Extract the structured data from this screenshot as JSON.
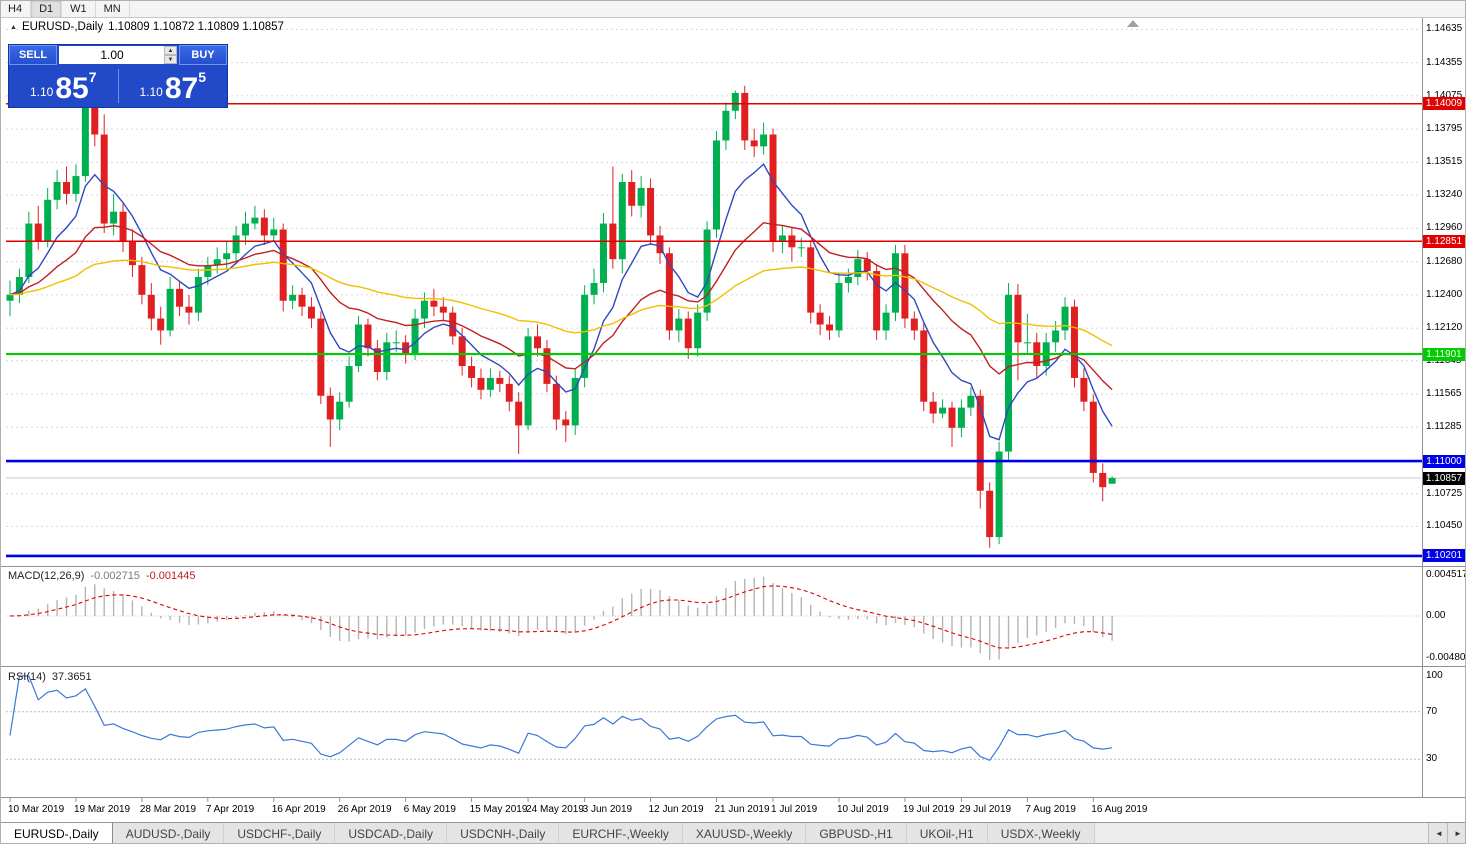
{
  "toolbar": {
    "timeframes": [
      "H4",
      "D1",
      "W1",
      "MN"
    ],
    "active": "D1"
  },
  "chart_header": {
    "title": "EURUSD-,Daily",
    "quote": "1.10809 1.10872 1.10809 1.10857"
  },
  "trade_panel": {
    "sell_label": "SELL",
    "buy_label": "BUY",
    "volume": "1.00",
    "sell_price_prefix": "1.10",
    "sell_price_main": "85",
    "sell_price_pip": "7",
    "buy_price_prefix": "1.10",
    "buy_price_main": "87",
    "buy_price_pip": "5"
  },
  "icons": {
    "chart_marker": "▲",
    "spinner_up": "▲",
    "spinner_down": "▼",
    "tab_scroll_left": "◄",
    "tab_scroll_right": "►"
  },
  "indicators": {
    "macd": {
      "label": "MACD(12,26,9)",
      "value_main": "-0.002715",
      "value_signal": "-0.001445",
      "axis_labels": [
        "0.004517",
        "0.00",
        "-0.004806"
      ]
    },
    "rsi": {
      "label": "RSI(14)",
      "value": "37.3651",
      "axis_labels": [
        "100",
        "70",
        "30"
      ],
      "levels": [
        100,
        70,
        30
      ]
    }
  },
  "price_axis": {
    "ticks": [
      1.14635,
      1.14355,
      1.14075,
      1.13795,
      1.13515,
      1.1324,
      1.1296,
      1.1268,
      1.124,
      1.1212,
      1.11845,
      1.11565,
      1.11285,
      1.10725,
      1.1045
    ],
    "levels": [
      {
        "price": 1.14009,
        "label": "1.14009",
        "type": "resistance",
        "color": "#e00000"
      },
      {
        "price": 1.12851,
        "label": "1.12851",
        "type": "resistance",
        "color": "#e00000"
      },
      {
        "price": 1.11901,
        "label": "1.11901",
        "type": "support",
        "color": "#00cc00"
      },
      {
        "price": 1.11,
        "label": "1.11000",
        "type": "support",
        "color": "#0000e8"
      },
      {
        "price": 1.10201,
        "label": "1.10201",
        "type": "support",
        "color": "#0000e8"
      }
    ],
    "current_price": {
      "value": 1.10857,
      "label": "1.10857"
    }
  },
  "time_axis": {
    "labels": [
      "10 Mar 2019",
      "19 Mar 2019",
      "28 Mar 2019",
      "7 Apr 2019",
      "16 Apr 2019",
      "26 Apr 2019",
      "6 May 2019",
      "15 May 2019",
      "24 May 2019",
      "3 Jun 2019",
      "12 Jun 2019",
      "21 Jun 2019",
      "1 Jul 2019",
      "10 Jul 2019",
      "19 Jul 2019",
      "29 Jul 2019",
      "7 Aug 2019",
      "16 Aug 2019"
    ],
    "candle_index": [
      0,
      7,
      14,
      21,
      28,
      35,
      42,
      49,
      55,
      61,
      68,
      75,
      81,
      88,
      95,
      101,
      108,
      115
    ]
  },
  "tabs": {
    "items": [
      "EURUSD-,Daily",
      "AUDUSD-,Daily",
      "USDCHF-,Daily",
      "USDCAD-,Daily",
      "USDCNH-,Daily",
      "EURCHF-,Weekly",
      "XAUUSD-,Weekly",
      "GBPUSD-,H1",
      "UKOil-,H1",
      "USDX-,Weekly"
    ],
    "active_index": 0
  },
  "colors": {
    "bull": "#00b050",
    "bear": "#e02020",
    "ma_fast": "#2f49c0",
    "ma_mid": "#c02020",
    "ma_slow": "#f0c000",
    "macd_hist": "#b4b4b4",
    "macd_signal": "#e00000",
    "rsi_line": "#3c78d8",
    "grid": "#d6d6d6",
    "separator": "#909090",
    "current_line": "#c8c8c8",
    "current_tag": "#000000"
  },
  "chart_data": {
    "type": "candlestick",
    "symbol": "EURUSD-",
    "timeframe": "Daily",
    "ohlc_current": {
      "open": 1.10809,
      "high": 1.10872,
      "low": 1.10809,
      "close": 1.10857
    },
    "price_range": {
      "min": 1.1015,
      "max": 1.1463
    },
    "moving_averages": [
      {
        "period": 8,
        "color_key": "ma_fast"
      },
      {
        "period": 21,
        "color_key": "ma_mid"
      },
      {
        "period": 55,
        "color_key": "ma_slow"
      }
    ],
    "macd_params": {
      "fast": 12,
      "slow": 26,
      "signal": 9
    },
    "rsi_params": {
      "period": 14
    },
    "candles": [
      [
        1.1235,
        1.1252,
        1.1222,
        1.124
      ],
      [
        1.124,
        1.1262,
        1.1233,
        1.1255
      ],
      [
        1.1255,
        1.131,
        1.125,
        1.13
      ],
      [
        1.13,
        1.1315,
        1.1278,
        1.1285
      ],
      [
        1.1285,
        1.133,
        1.128,
        1.132
      ],
      [
        1.132,
        1.1345,
        1.1312,
        1.1335
      ],
      [
        1.1335,
        1.1348,
        1.1316,
        1.1325
      ],
      [
        1.1325,
        1.135,
        1.1318,
        1.134
      ],
      [
        1.134,
        1.1448,
        1.1335,
        1.142
      ],
      [
        1.142,
        1.1437,
        1.1365,
        1.1375
      ],
      [
        1.1375,
        1.1392,
        1.1292,
        1.13
      ],
      [
        1.13,
        1.1325,
        1.129,
        1.131
      ],
      [
        1.131,
        1.1318,
        1.1276,
        1.1285
      ],
      [
        1.1285,
        1.1295,
        1.1255,
        1.1265
      ],
      [
        1.1265,
        1.1272,
        1.1232,
        1.124
      ],
      [
        1.124,
        1.125,
        1.121,
        1.122
      ],
      [
        1.122,
        1.123,
        1.1198,
        1.121
      ],
      [
        1.121,
        1.1255,
        1.1205,
        1.1245
      ],
      [
        1.1245,
        1.1252,
        1.1222,
        1.123
      ],
      [
        1.123,
        1.124,
        1.1215,
        1.1225
      ],
      [
        1.1225,
        1.1262,
        1.1218,
        1.1255
      ],
      [
        1.1255,
        1.1272,
        1.1248,
        1.1265
      ],
      [
        1.1265,
        1.128,
        1.1258,
        1.127
      ],
      [
        1.127,
        1.1285,
        1.1262,
        1.1275
      ],
      [
        1.1275,
        1.1298,
        1.1268,
        1.129
      ],
      [
        1.129,
        1.131,
        1.1282,
        1.13
      ],
      [
        1.13,
        1.1315,
        1.1295,
        1.1305
      ],
      [
        1.1305,
        1.1312,
        1.1282,
        1.129
      ],
      [
        1.129,
        1.1305,
        1.1285,
        1.1295
      ],
      [
        1.1295,
        1.13,
        1.1226,
        1.1235
      ],
      [
        1.1235,
        1.1248,
        1.1228,
        1.124
      ],
      [
        1.124,
        1.1246,
        1.1222,
        1.123
      ],
      [
        1.123,
        1.1238,
        1.1212,
        1.122
      ],
      [
        1.122,
        1.1226,
        1.1148,
        1.1155
      ],
      [
        1.1155,
        1.1162,
        1.1112,
        1.1135
      ],
      [
        1.1135,
        1.1158,
        1.1126,
        1.115
      ],
      [
        1.115,
        1.1188,
        1.1145,
        1.118
      ],
      [
        1.118,
        1.1222,
        1.1175,
        1.1215
      ],
      [
        1.1215,
        1.122,
        1.1188,
        1.1195
      ],
      [
        1.1195,
        1.1202,
        1.1168,
        1.1175
      ],
      [
        1.1175,
        1.1208,
        1.1168,
        1.12
      ],
      [
        1.12,
        1.121,
        1.1192,
        1.12
      ],
      [
        1.12,
        1.1206,
        1.1182,
        1.119
      ],
      [
        1.119,
        1.1228,
        1.1185,
        1.122
      ],
      [
        1.122,
        1.1242,
        1.1212,
        1.1235
      ],
      [
        1.1235,
        1.1245,
        1.1222,
        1.123
      ],
      [
        1.123,
        1.1238,
        1.1218,
        1.1225
      ],
      [
        1.1225,
        1.123,
        1.1198,
        1.1205
      ],
      [
        1.1205,
        1.1212,
        1.1172,
        1.118
      ],
      [
        1.118,
        1.1188,
        1.1162,
        1.117
      ],
      [
        1.117,
        1.1178,
        1.1152,
        1.116
      ],
      [
        1.116,
        1.1178,
        1.1154,
        1.117
      ],
      [
        1.117,
        1.1176,
        1.1158,
        1.1165
      ],
      [
        1.1165,
        1.1172,
        1.1142,
        1.115
      ],
      [
        1.115,
        1.1158,
        1.1106,
        1.113
      ],
      [
        1.113,
        1.1212,
        1.1126,
        1.1205
      ],
      [
        1.1205,
        1.1215,
        1.1188,
        1.1195
      ],
      [
        1.1195,
        1.1202,
        1.1158,
        1.1165
      ],
      [
        1.1165,
        1.1172,
        1.1126,
        1.1135
      ],
      [
        1.1135,
        1.1142,
        1.1116,
        1.113
      ],
      [
        1.113,
        1.1178,
        1.1122,
        1.117
      ],
      [
        1.117,
        1.1248,
        1.1162,
        1.124
      ],
      [
        1.124,
        1.1262,
        1.1232,
        1.125
      ],
      [
        1.125,
        1.1309,
        1.1242,
        1.13
      ],
      [
        1.13,
        1.1348,
        1.1262,
        1.127
      ],
      [
        1.127,
        1.1342,
        1.1258,
        1.1335
      ],
      [
        1.1335,
        1.1345,
        1.1306,
        1.1315
      ],
      [
        1.1315,
        1.134,
        1.1305,
        1.133
      ],
      [
        1.133,
        1.1338,
        1.1282,
        1.129
      ],
      [
        1.129,
        1.1298,
        1.1266,
        1.1275
      ],
      [
        1.1275,
        1.128,
        1.1202,
        1.121
      ],
      [
        1.121,
        1.1228,
        1.12,
        1.122
      ],
      [
        1.122,
        1.1226,
        1.1186,
        1.1195
      ],
      [
        1.1195,
        1.1232,
        1.1188,
        1.1225
      ],
      [
        1.1225,
        1.1302,
        1.1218,
        1.1295
      ],
      [
        1.1295,
        1.1378,
        1.1288,
        1.137
      ],
      [
        1.137,
        1.1402,
        1.1362,
        1.1395
      ],
      [
        1.1395,
        1.1412,
        1.1388,
        1.141
      ],
      [
        1.141,
        1.1416,
        1.1362,
        1.137
      ],
      [
        1.137,
        1.138,
        1.1356,
        1.1365
      ],
      [
        1.1365,
        1.1385,
        1.1358,
        1.1375
      ],
      [
        1.1375,
        1.138,
        1.1276,
        1.1285
      ],
      [
        1.1285,
        1.1298,
        1.1275,
        1.129
      ],
      [
        1.129,
        1.1296,
        1.1268,
        1.128
      ],
      [
        1.128,
        1.1288,
        1.1272,
        1.128
      ],
      [
        1.128,
        1.1286,
        1.1216,
        1.1225
      ],
      [
        1.1225,
        1.1232,
        1.1206,
        1.1215
      ],
      [
        1.1215,
        1.1222,
        1.1202,
        1.121
      ],
      [
        1.121,
        1.1258,
        1.1204,
        1.125
      ],
      [
        1.125,
        1.1262,
        1.1242,
        1.1255
      ],
      [
        1.1255,
        1.1278,
        1.1248,
        1.127
      ],
      [
        1.127,
        1.1276,
        1.1252,
        1.126
      ],
      [
        1.126,
        1.1266,
        1.1202,
        1.121
      ],
      [
        1.121,
        1.1232,
        1.1202,
        1.1225
      ],
      [
        1.1225,
        1.1282,
        1.1218,
        1.1275
      ],
      [
        1.1275,
        1.1282,
        1.1212,
        1.122
      ],
      [
        1.122,
        1.1226,
        1.1202,
        1.121
      ],
      [
        1.121,
        1.1216,
        1.1142,
        1.115
      ],
      [
        1.115,
        1.1158,
        1.1132,
        1.114
      ],
      [
        1.114,
        1.1152,
        1.1136,
        1.1145
      ],
      [
        1.1145,
        1.115,
        1.1112,
        1.1128
      ],
      [
        1.1128,
        1.1152,
        1.112,
        1.1145
      ],
      [
        1.1145,
        1.1162,
        1.1138,
        1.1155
      ],
      [
        1.1155,
        1.116,
        1.106,
        1.1075
      ],
      [
        1.1075,
        1.1082,
        1.1027,
        1.1036
      ],
      [
        1.1036,
        1.1116,
        1.103,
        1.1108
      ],
      [
        1.1108,
        1.125,
        1.11,
        1.124
      ],
      [
        1.124,
        1.1249,
        1.1168,
        1.12
      ],
      [
        1.12,
        1.1224,
        1.119,
        1.12
      ],
      [
        1.12,
        1.1208,
        1.117,
        1.118
      ],
      [
        1.118,
        1.1208,
        1.1172,
        1.12
      ],
      [
        1.12,
        1.1218,
        1.1192,
        1.121
      ],
      [
        1.121,
        1.1238,
        1.1202,
        1.123
      ],
      [
        1.123,
        1.1236,
        1.1162,
        1.117
      ],
      [
        1.117,
        1.1178,
        1.1142,
        1.115
      ],
      [
        1.115,
        1.1156,
        1.1082,
        1.109
      ],
      [
        1.109,
        1.1098,
        1.1066,
        1.1078
      ],
      [
        1.10809,
        1.10872,
        1.10809,
        1.10857
      ]
    ]
  }
}
